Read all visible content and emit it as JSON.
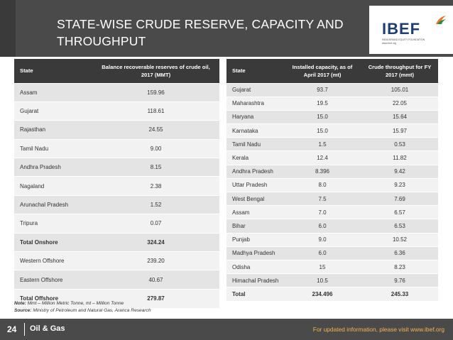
{
  "header": {
    "title": "STATE-WISE CRUDE RESERVE, CAPACITY AND THROUGHPUT",
    "logo": "IBEF",
    "logo_tagline": "INDIA BRAND EQUITY FOUNDATION",
    "logo_url": "www.ibef.org",
    "colors": {
      "bar": "#4a4a4a",
      "logo_text": "#1f3c73",
      "accent": "#f5a623"
    }
  },
  "reserves_table": {
    "headers": [
      "State",
      "Balance recoverable reserves of crude oil, 2017 (MMT)"
    ],
    "rows": [
      {
        "state": "Assam",
        "value": "159.96",
        "bold": false
      },
      {
        "state": "Gujarat",
        "value": "118.61",
        "bold": false
      },
      {
        "state": "Rajasthan",
        "value": "24.55",
        "bold": false
      },
      {
        "state": "Tamil Nadu",
        "value": "9.00",
        "bold": false
      },
      {
        "state": "Andhra Pradesh",
        "value": "8.15",
        "bold": false
      },
      {
        "state": "Nagaland",
        "value": "2.38",
        "bold": false
      },
      {
        "state": "Arunachal Pradesh",
        "value": "1.52",
        "bold": false
      },
      {
        "state": "Tripura",
        "value": "0.07",
        "bold": false
      },
      {
        "state": "Total Onshore",
        "value": "324.24",
        "bold": true
      },
      {
        "state": "Western Offshore",
        "value": "239.20",
        "bold": false
      },
      {
        "state": "Eastern Offshore",
        "value": "40.67",
        "bold": false
      },
      {
        "state": "Total Offshore",
        "value": "279.87",
        "bold": true
      }
    ]
  },
  "capacity_table": {
    "headers": [
      "State",
      "Installed capacity, as of April 2017 (mt)",
      "Crude throughput for FY 2017 (mmt)"
    ],
    "rows": [
      {
        "state": "Gujarat",
        "capacity": "93.7",
        "throughput": "105.01",
        "bold": false
      },
      {
        "state": "Maharashtra",
        "capacity": "19.5",
        "throughput": "22.05",
        "bold": false
      },
      {
        "state": "Haryana",
        "capacity": "15.0",
        "throughput": "15.64",
        "bold": false
      },
      {
        "state": "Karnataka",
        "capacity": "15.0",
        "throughput": "15.97",
        "bold": false
      },
      {
        "state": "Tamil Nadu",
        "capacity": "1.5",
        "throughput": "0.53",
        "bold": false
      },
      {
        "state": "Kerala",
        "capacity": "12.4",
        "throughput": "11.82",
        "bold": false
      },
      {
        "state": "Andhra Pradesh",
        "capacity": "8.396",
        "throughput": "9.42",
        "bold": false
      },
      {
        "state": "Uttar Pradesh",
        "capacity": "8.0",
        "throughput": "9.23",
        "bold": false
      },
      {
        "state": "West Bengal",
        "capacity": "7.5",
        "throughput": "7.69",
        "bold": false
      },
      {
        "state": "Assam",
        "capacity": "7.0",
        "throughput": "6.57",
        "bold": false
      },
      {
        "state": "Bihar",
        "capacity": "6.0",
        "throughput": "6.53",
        "bold": false
      },
      {
        "state": "Punjab",
        "capacity": "9.0",
        "throughput": "10.52",
        "bold": false
      },
      {
        "state": "Madhya Pradesh",
        "capacity": "6.0",
        "throughput": "6.36",
        "bold": false
      },
      {
        "state": "Odisha",
        "capacity": "15",
        "throughput": "8.23",
        "bold": false
      },
      {
        "state": "Himachal Pradesh",
        "capacity": "10.5",
        "throughput": "9.76",
        "bold": false
      },
      {
        "state": "Total",
        "capacity": "234.496",
        "throughput": "245.33",
        "bold": true
      }
    ]
  },
  "notes": {
    "note_label": "Note:",
    "note_text": " Mmt – Million Metric Tonne, mt – Million Tonne",
    "source_label": "Source:",
    "source_text": " Ministry of Petroleum and Natural Gas, Aranca Research"
  },
  "footer": {
    "page_number": "24",
    "section": "Oil & Gas",
    "tagline": "For updated information, please visit www.ibef.org"
  }
}
